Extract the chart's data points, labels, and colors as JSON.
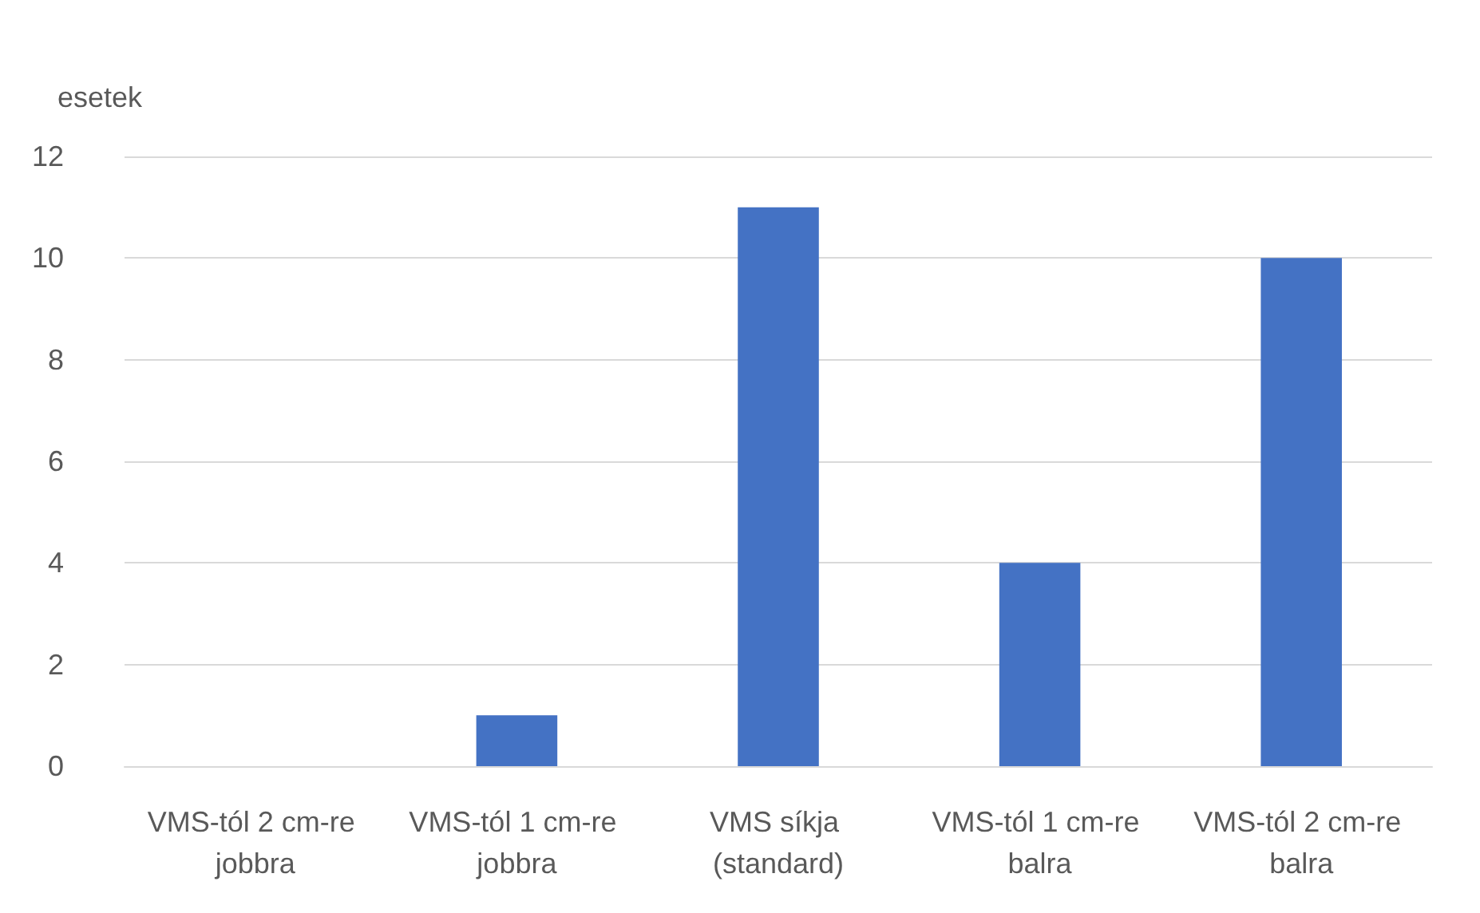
{
  "chart_data": {
    "type": "bar",
    "ylabel": "esetek",
    "categories": [
      "VMS-tól 2 cm-re jobbra",
      "VMS-tól 1 cm-re jobbra",
      "VMS síkja (standard)",
      "VMS-tól 1 cm-re balra",
      "VMS-tól 2 cm-re balra"
    ],
    "values": [
      0,
      1,
      11,
      4,
      10
    ],
    "color": "#4472c4",
    "ylim": [
      0,
      12
    ],
    "yticks": [
      0,
      2,
      4,
      6,
      8,
      10,
      12
    ],
    "grid": "y"
  }
}
